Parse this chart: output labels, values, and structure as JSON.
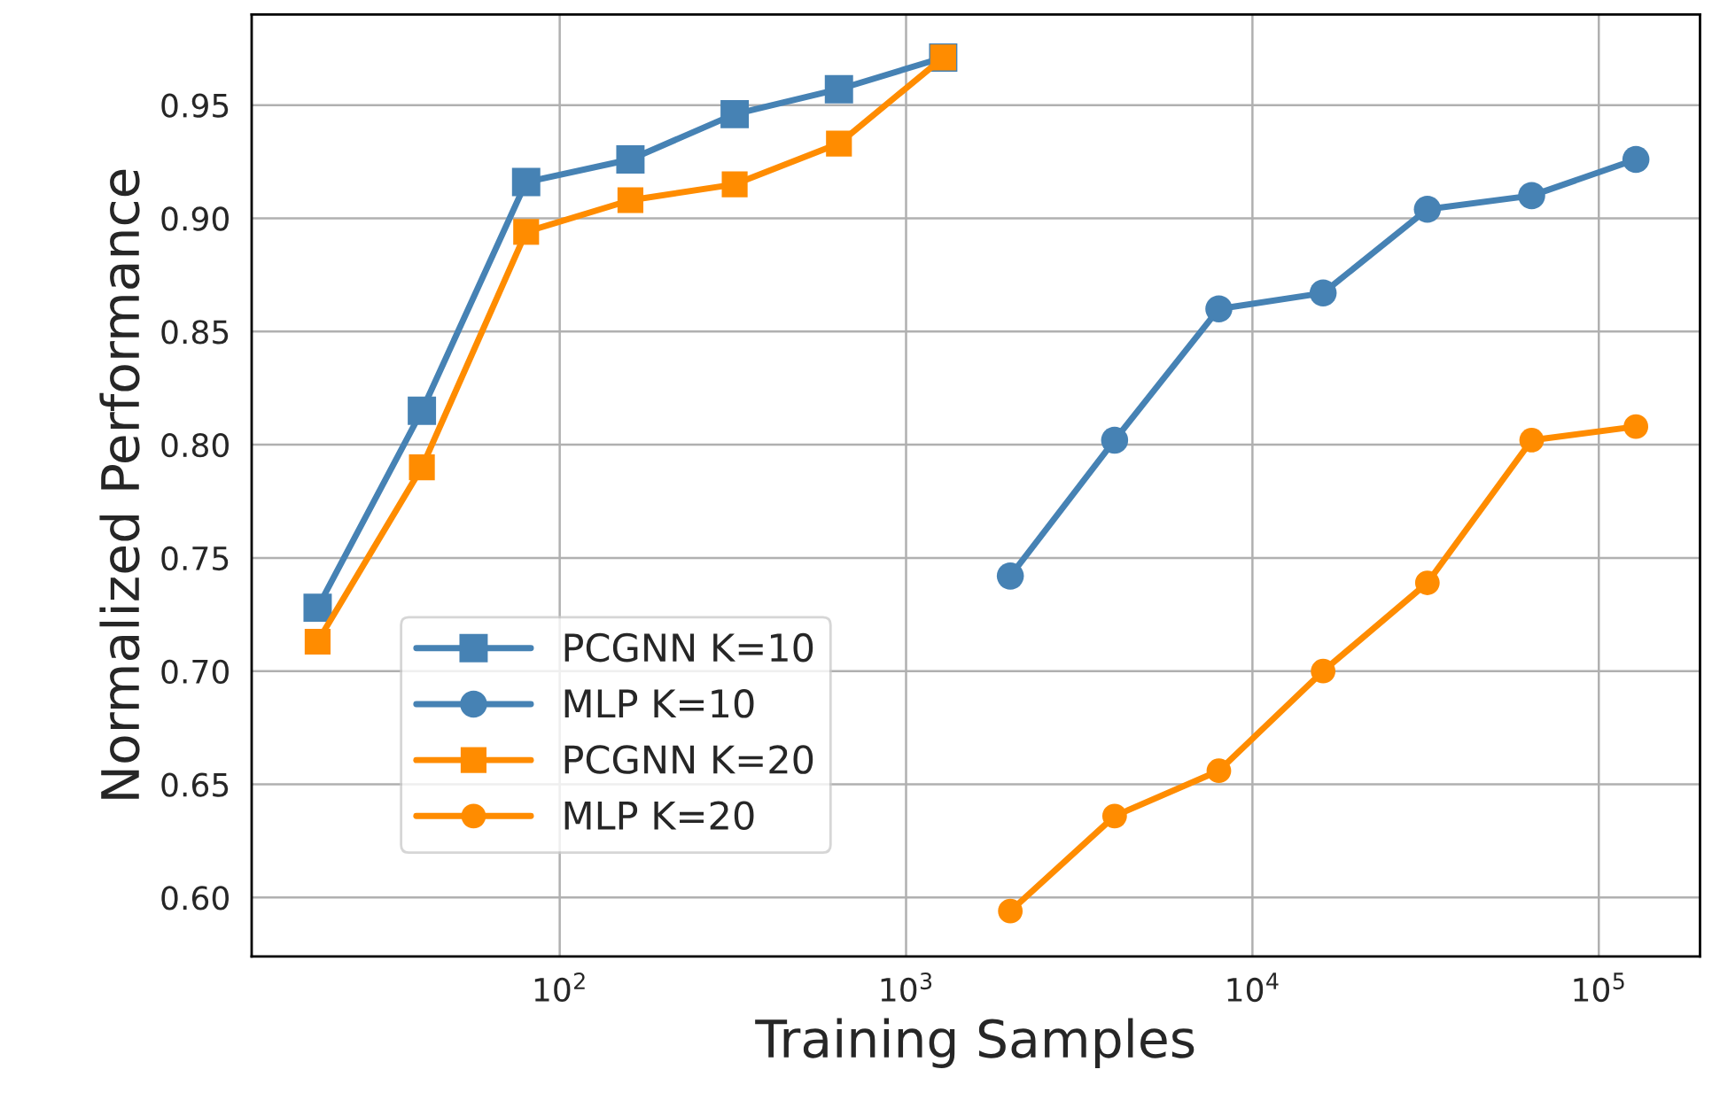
{
  "chart_data": {
    "type": "line",
    "xlabel": "Training Samples",
    "ylabel": "Normalized Performance",
    "log": "x",
    "xlim": [
      12.9,
      196000
    ],
    "ylim": [
      0.574,
      0.99
    ],
    "xticks": [
      {
        "value": 100,
        "label": "10$^{2}$"
      },
      {
        "value": 1000,
        "label": "10$^{3}$"
      },
      {
        "value": 10000,
        "label": "10$^{4}$"
      },
      {
        "value": 100000,
        "label": "10$^{5}$"
      }
    ],
    "yticks": [
      {
        "value": 0.6,
        "label": "0.60"
      },
      {
        "value": 0.65,
        "label": "0.65"
      },
      {
        "value": 0.7,
        "label": "0.70"
      },
      {
        "value": 0.75,
        "label": "0.75"
      },
      {
        "value": 0.8,
        "label": "0.80"
      },
      {
        "value": 0.85,
        "label": "0.85"
      },
      {
        "value": 0.9,
        "label": "0.90"
      },
      {
        "value": 0.95,
        "label": "0.95"
      }
    ],
    "grid": true,
    "legend": "lower left",
    "line_style": "solid",
    "series": [
      {
        "name": "PCGNN K=10",
        "color": "#4682b4",
        "marker": "square",
        "x": [
          20,
          40,
          80,
          160,
          320,
          640,
          1280
        ],
        "values": [
          0.728,
          0.815,
          0.916,
          0.926,
          0.946,
          0.957,
          0.971
        ]
      },
      {
        "name": "MLP K=10",
        "color": "#4682b4",
        "marker": "circle",
        "x": [
          2000,
          4000,
          8000,
          16000,
          32000,
          64000,
          128000
        ],
        "values": [
          0.742,
          0.802,
          0.86,
          0.867,
          0.904,
          0.91,
          0.926
        ]
      },
      {
        "name": "PCGNN K=20",
        "color": "#ff8c00",
        "marker": "square",
        "x": [
          20,
          40,
          80,
          160,
          320,
          640,
          1280
        ],
        "values": [
          0.713,
          0.79,
          0.894,
          0.908,
          0.915,
          0.933,
          0.971
        ]
      },
      {
        "name": "MLP K=20",
        "color": "#ff8c00",
        "marker": "circle",
        "x": [
          2000,
          4000,
          8000,
          16000,
          32000,
          64000,
          128000
        ],
        "values": [
          0.594,
          0.636,
          0.656,
          0.7,
          0.739,
          0.802,
          0.808
        ]
      }
    ]
  }
}
